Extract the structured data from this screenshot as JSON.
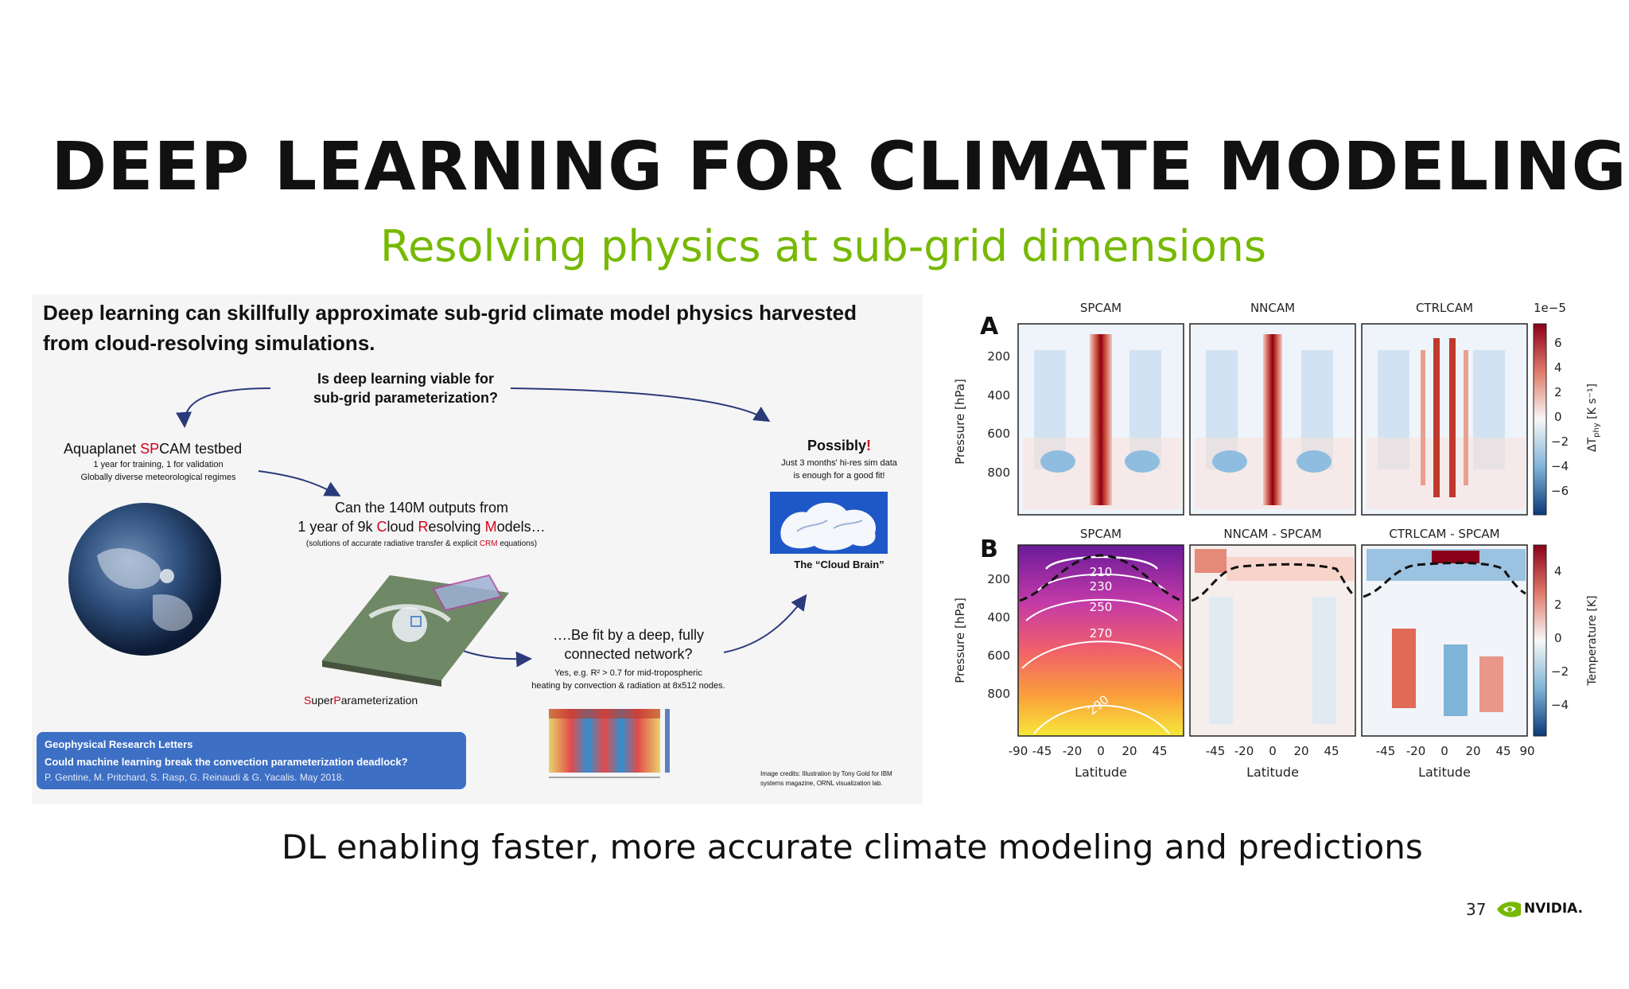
{
  "slide": {
    "title": "DEEP LEARNING FOR CLIMATE MODELING",
    "subtitle": "Resolving physics at sub-grid dimensions",
    "footer": "DL enabling faster, more accurate climate modeling and predictions",
    "page_number": "37",
    "logo_text": "NVIDIA."
  },
  "left_figure": {
    "headline_1": "Deep learning can skillfully approximate sub-grid climate model physics harvested",
    "headline_2": "from cloud-resolving simulations.",
    "question_1": "Is deep learning viable for",
    "question_2": "sub-grid parameterization?",
    "testbed_pre": "Aquaplanet ",
    "testbed_red": "SP",
    "testbed_post": "CAM testbed",
    "testbed_line2": "1 year for training, 1 for validation",
    "testbed_line3": "Globally diverse meteorological regimes",
    "outputs_line1": "Can the 140M outputs from",
    "outputs_line2_a": "1 year of 9k ",
    "outputs_line2_c": "C",
    "outputs_line2_b": "loud ",
    "outputs_line2_r": "R",
    "outputs_line2_d": "esolving ",
    "outputs_line2_m": "M",
    "outputs_line2_e": "odels…",
    "outputs_line3_a": "(solutions of accurate radiative transfer & explicit ",
    "outputs_line3_crm": "CRM",
    "outputs_line3_b": " equations)",
    "possibly": "Possibly",
    "possibly_bang": "!",
    "possibly_line2": "Just 3 months' hi-res sim data",
    "possibly_line3": "is enough for a good fit!",
    "cloud_brain": "The “Cloud Brain”",
    "fit_line1": "….Be fit by a deep, fully",
    "fit_line2": "connected network?",
    "fit_line3": "Yes, e.g. R² > 0.7 for mid-tropospheric",
    "fit_line4": "heating by convection & radiation at 8x512 nodes.",
    "superparam_red": "S",
    "superparam_a": "uper",
    "superparam_red2": "P",
    "superparam_b": "arameterization",
    "journal": "Geophysical Research Letters",
    "paper_title": "Could machine learning break the convection parameterization deadlock?",
    "authors": "P. Gentine, M. Pritchard, S. Rasp, G. Reinaudi & G. Yacalis. May 2018.",
    "credits_1": "Image credits: Illustration by Tony Gold for IBM",
    "credits_2": "systems magazine, ORNL visualization lab."
  },
  "right_figure": {
    "panel_a_letter": "A",
    "panel_b_letter": "B",
    "row_a_titles": [
      "SPCAM",
      "NNCAM",
      "CTRLCAM"
    ],
    "row_b_titles": [
      "SPCAM",
      "NNCAM - SPCAM",
      "CTRLCAM - SPCAM"
    ],
    "y_label": "Pressure [hPa]",
    "y_ticks": [
      "200",
      "400",
      "600",
      "800"
    ],
    "x_label": "Latitude",
    "x_ticks_first": [
      "-90",
      "-45",
      "-20",
      "0",
      "20",
      "45"
    ],
    "x_ticks_middle": [
      "-45",
      "-20",
      "0",
      "20",
      "45"
    ],
    "x_ticks_last": [
      "-45",
      "-20",
      "0",
      "20",
      "45",
      "90"
    ],
    "colorbar_a_scale": "1e−5",
    "colorbar_a_ticks": [
      "6",
      "4",
      "2",
      "0",
      "−2",
      "−4",
      "−6"
    ],
    "colorbar_a_label": "ΔT",
    "colorbar_a_label_sub": "phy",
    "colorbar_a_label_unit": " [K s⁻¹]",
    "colorbar_b_ticks": [
      "4",
      "2",
      "0",
      "−2",
      "−4"
    ],
    "colorbar_b_label": "Temperature [K]",
    "contour_labels": [
      "210",
      "230",
      "250",
      "270",
      "290"
    ]
  },
  "colors": {
    "accent": "#76b900",
    "dark_text": "#111111",
    "red_text": "#d0021b",
    "journal_box": "#3d6fc4"
  }
}
